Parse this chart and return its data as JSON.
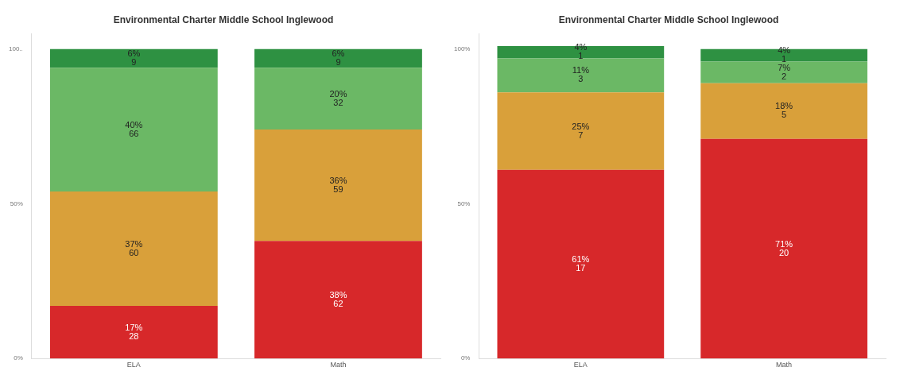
{
  "chart_data": [
    {
      "type": "bar",
      "title": "Environmental Charter Middle School Inglewood",
      "categories": [
        "ELA",
        "Math"
      ],
      "stacked": true,
      "ylim": [
        0,
        105
      ],
      "yticks": [
        {
          "value": 0,
          "label": "0%"
        },
        {
          "value": 50,
          "label": "50%"
        },
        {
          "value": 100,
          "label": "100.."
        }
      ],
      "grid": false,
      "legend": false,
      "series": [
        {
          "color": "#d7282a",
          "values": [
            17,
            38
          ],
          "value_labels": [
            "17%\n28",
            "38%\n62"
          ]
        },
        {
          "color": "#d9a03a",
          "values": [
            37,
            36
          ],
          "value_labels": [
            "37%\n60",
            "36%\n59"
          ]
        },
        {
          "color": "#6bb865",
          "values": [
            40,
            20
          ],
          "value_labels": [
            "40%\n66",
            "20%\n32"
          ]
        },
        {
          "color": "#2e9142",
          "values": [
            6,
            6
          ],
          "value_labels": [
            "6%\n9",
            "6%\n9"
          ]
        }
      ]
    },
    {
      "type": "bar",
      "title": "Environmental Charter Middle School Inglewood",
      "categories": [
        "ELA",
        "Math"
      ],
      "stacked": true,
      "ylim": [
        0,
        105
      ],
      "yticks": [
        {
          "value": 0,
          "label": "0%"
        },
        {
          "value": 50,
          "label": "50%"
        },
        {
          "value": 100,
          "label": "100%"
        }
      ],
      "grid": false,
      "legend": false,
      "series": [
        {
          "color": "#d7282a",
          "values": [
            61,
            71
          ],
          "value_labels": [
            "61%\n17",
            "71%\n20"
          ]
        },
        {
          "color": "#d9a03a",
          "values": [
            25,
            18
          ],
          "value_labels": [
            "25%\n7",
            "18%\n5"
          ]
        },
        {
          "color": "#6bb865",
          "values": [
            11,
            7
          ],
          "value_labels": [
            "11%\n3",
            "7%\n2"
          ]
        },
        {
          "color": "#2e9142",
          "values": [
            4,
            4
          ],
          "value_labels": [
            "4%\n1",
            "4%\n1"
          ]
        }
      ]
    }
  ]
}
